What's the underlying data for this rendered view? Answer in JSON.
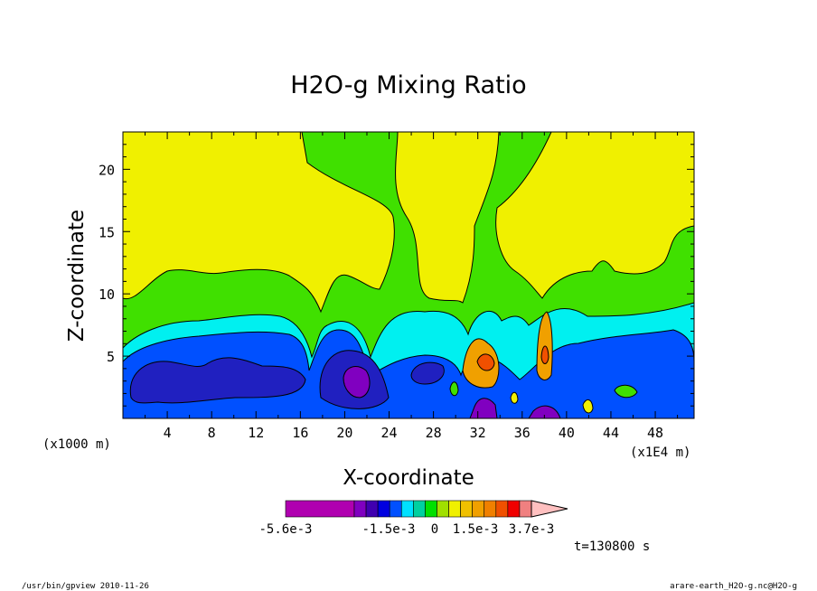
{
  "chart_data": {
    "type": "heatmap",
    "title": "H2O-g Mixing Ratio",
    "xlabel": "X-coordinate",
    "ylabel": "Z-coordinate",
    "x_unit_left": "(x1000 m)",
    "x_unit_right": "(x1E4 m)",
    "x_ticks": [
      "4",
      "8",
      "12",
      "16",
      "20",
      "24",
      "28",
      "32",
      "36",
      "40",
      "44",
      "48"
    ],
    "y_ticks": [
      "5",
      "10",
      "15",
      "20"
    ],
    "xlim": [
      0,
      51.5
    ],
    "ylim": [
      0,
      23
    ],
    "colorbar": {
      "colors": [
        "#b000b0",
        "#8000c0",
        "#4000b0",
        "#0000e0",
        "#0050ff",
        "#00e0ff",
        "#00d0a0",
        "#00e000",
        "#a0e000",
        "#f0f000",
        "#f0c000",
        "#f0a000",
        "#f08000",
        "#f05000",
        "#f00000",
        "#f08080",
        "#ffc0c0"
      ],
      "labels": [
        "-5.6e-3",
        "-1.5e-3",
        "0",
        "1.5e-3",
        "3.7e-3"
      ]
    },
    "time_label": "t=130800 s",
    "colors": {
      "yellow": "#f0f000",
      "green": "#40e000",
      "cyan": "#00f0f0",
      "blue": "#0050ff",
      "darkblue": "#2020c0",
      "purple": "#8000c0"
    }
  },
  "footer": {
    "left": "/usr/bin/gpview  2010-11-26",
    "right": "arare-earth_H2O-g.nc@H2O-g"
  }
}
